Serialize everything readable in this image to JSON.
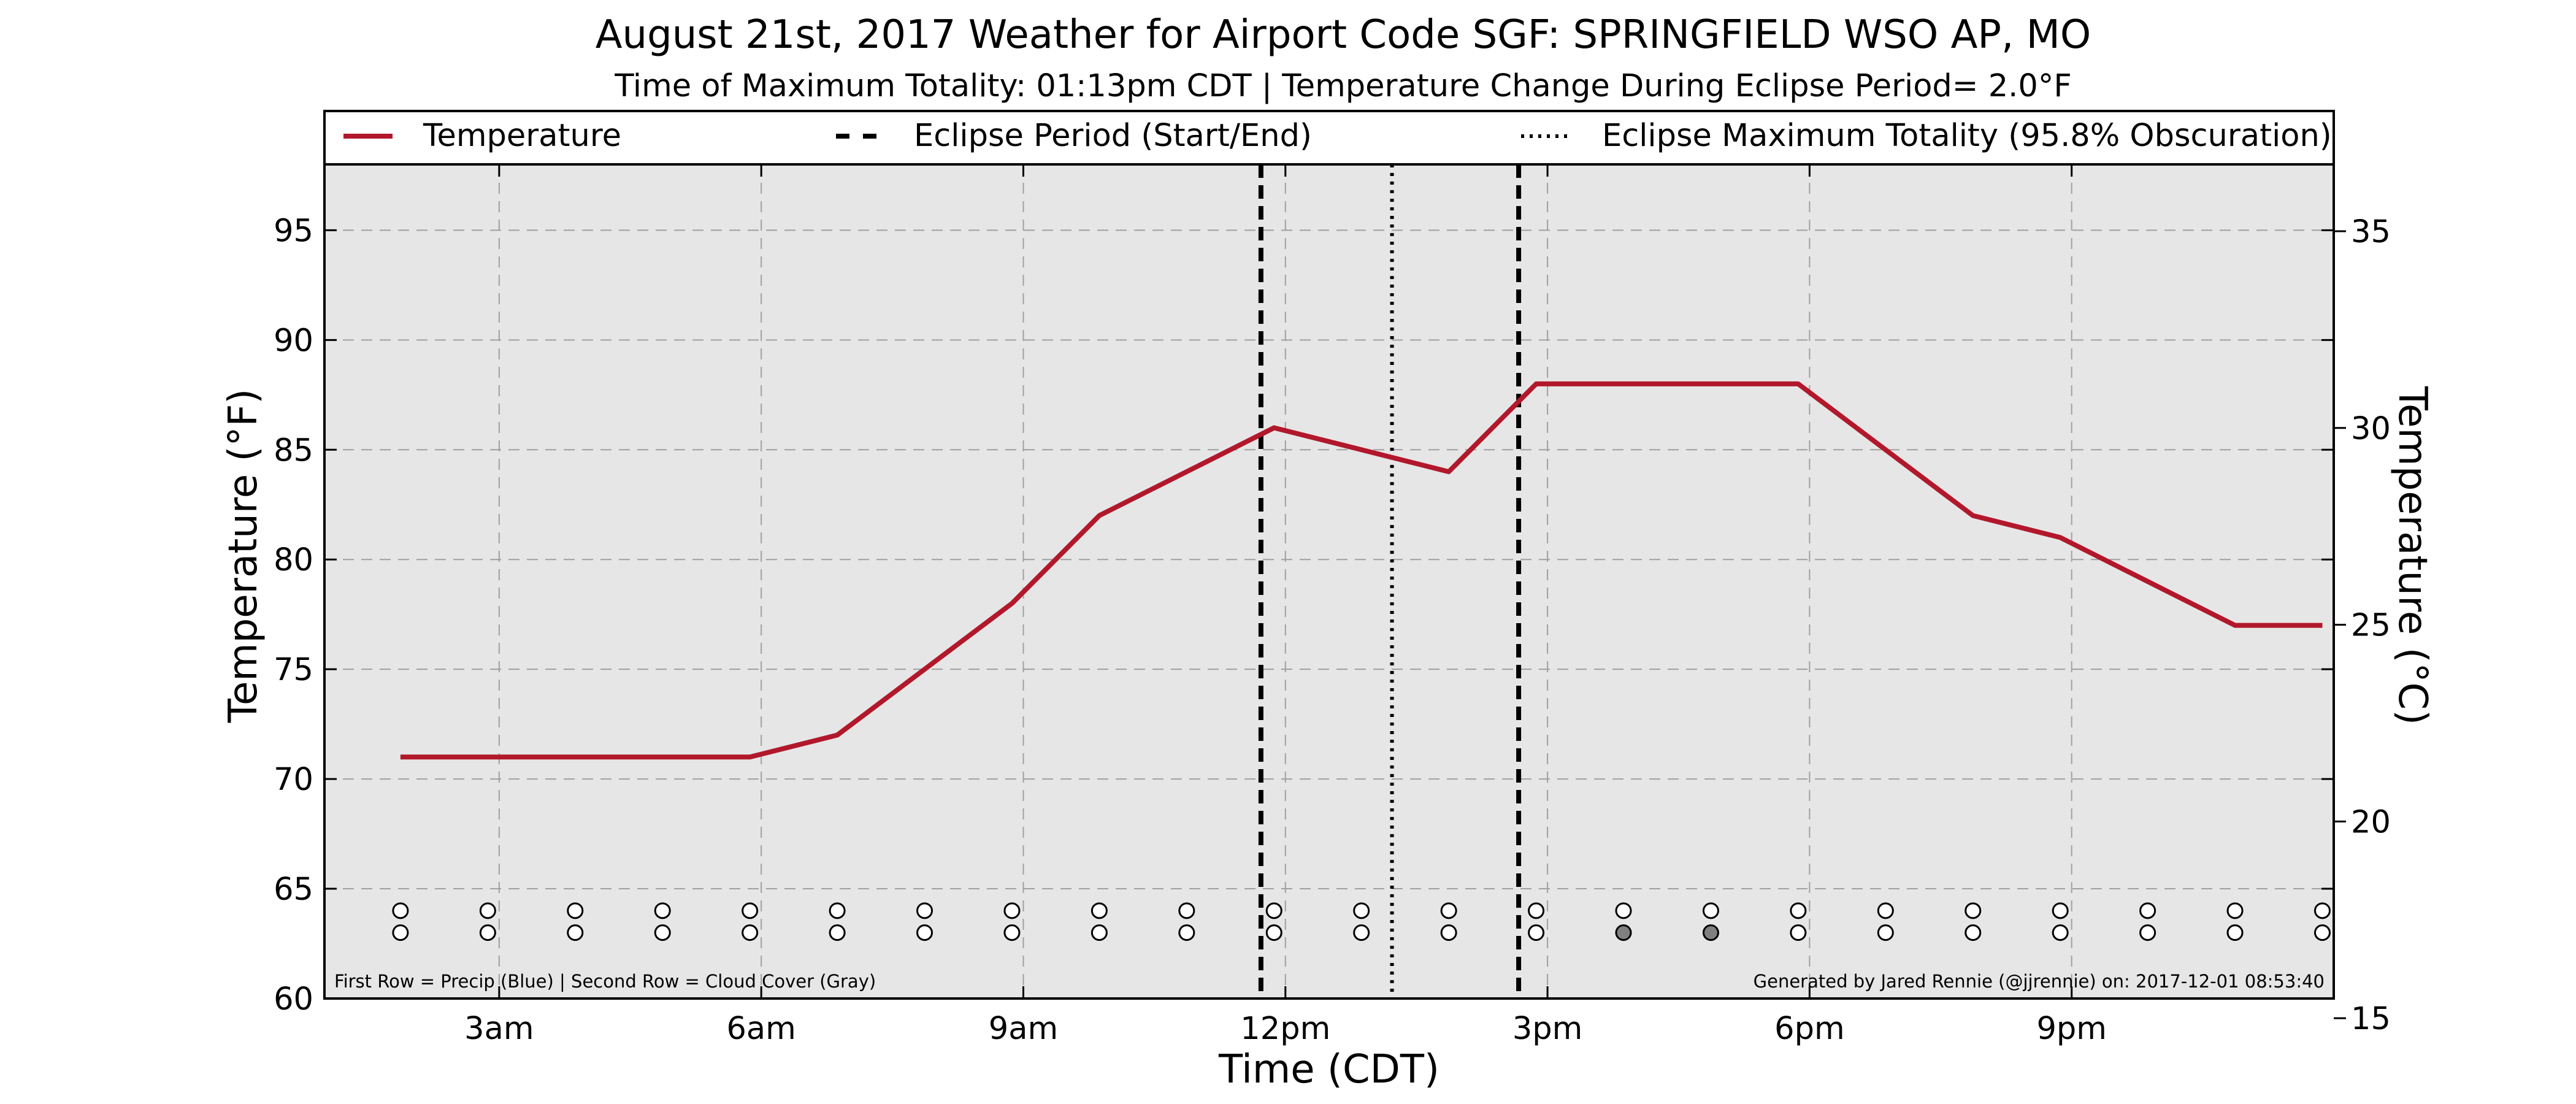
{
  "chart_data": {
    "type": "line",
    "title": "August 21st, 2017 Weather for Airport Code SGF: SPRINGFIELD WSO AP, MO",
    "subtitle": "Time of Maximum Totality: 01:13pm CDT | Temperature Change During Eclipse Period= 2.0°F",
    "xlabel": "Time (CDT)",
    "ylabel": "Temperature (°F)",
    "ylabel_right": "Temperature (°C)",
    "xlim": [
      1.0,
      24.0
    ],
    "ylim": [
      60,
      98
    ],
    "ylim_right": [
      15.5,
      36.7
    ],
    "x_ticks": [
      {
        "x": 3,
        "label": "3am"
      },
      {
        "x": 6,
        "label": "6am"
      },
      {
        "x": 9,
        "label": "9am"
      },
      {
        "x": 12,
        "label": "12pm"
      },
      {
        "x": 15,
        "label": "3pm"
      },
      {
        "x": 18,
        "label": "6pm"
      },
      {
        "x": 21,
        "label": "9pm"
      }
    ],
    "y_ticks": [
      60,
      65,
      70,
      75,
      80,
      85,
      90,
      95
    ],
    "y_ticks_right": [
      15,
      20,
      25,
      30,
      35
    ],
    "grid": true,
    "legend_position": "top",
    "legend": {
      "temperature": "Temperature",
      "eclipse_period": "Eclipse Period (Start/End)",
      "max_totality": "Eclipse Maximum Totality (95.8% Obscuration)"
    },
    "series": [
      {
        "name": "Temperature",
        "color": "#b2182b",
        "points": [
          {
            "x": 1.87,
            "y": 71
          },
          {
            "x": 2.87,
            "y": 71
          },
          {
            "x": 3.87,
            "y": 71
          },
          {
            "x": 4.87,
            "y": 71
          },
          {
            "x": 5.87,
            "y": 71
          },
          {
            "x": 6.87,
            "y": 72
          },
          {
            "x": 7.87,
            "y": 75
          },
          {
            "x": 8.87,
            "y": 78
          },
          {
            "x": 9.87,
            "y": 82
          },
          {
            "x": 10.87,
            "y": 84
          },
          {
            "x": 11.87,
            "y": 86
          },
          {
            "x": 12.87,
            "y": 85
          },
          {
            "x": 13.87,
            "y": 84
          },
          {
            "x": 14.87,
            "y": 88
          },
          {
            "x": 15.87,
            "y": 88
          },
          {
            "x": 16.87,
            "y": 88
          },
          {
            "x": 17.87,
            "y": 88
          },
          {
            "x": 18.87,
            "y": 85
          },
          {
            "x": 19.87,
            "y": 82
          },
          {
            "x": 20.87,
            "y": 81
          },
          {
            "x": 21.87,
            "y": 79
          },
          {
            "x": 22.87,
            "y": 77
          },
          {
            "x": 23.87,
            "y": 77
          }
        ]
      }
    ],
    "eclipse_start": 11.72,
    "eclipse_end": 14.67,
    "max_totality": 13.22,
    "markers": {
      "x": [
        1.87,
        2.87,
        3.87,
        4.87,
        5.87,
        6.87,
        7.87,
        8.87,
        9.87,
        10.87,
        11.87,
        12.87,
        13.87,
        14.87,
        15.87,
        16.87,
        17.87,
        18.87,
        19.87,
        20.87,
        21.87,
        22.87,
        23.87
      ],
      "precip_y": 64,
      "cloud_y": 63,
      "cloud_filled_x": [
        15.87,
        16.87
      ],
      "empty_color": "#ffffff",
      "cloud_fill_color": "#808080"
    },
    "footnote_left": "First Row = Precip (Blue) | Second Row = Cloud Cover (Gray)",
    "footnote_right": "Generated by Jared Rennie (@jjrennie) on: 2017-12-01 08:53:40",
    "colors": {
      "plot_background": "#e6e6e6",
      "grid": "#a0a0a0",
      "temperature_line": "#b2182b",
      "eclipse_lines": "#000000"
    }
  }
}
